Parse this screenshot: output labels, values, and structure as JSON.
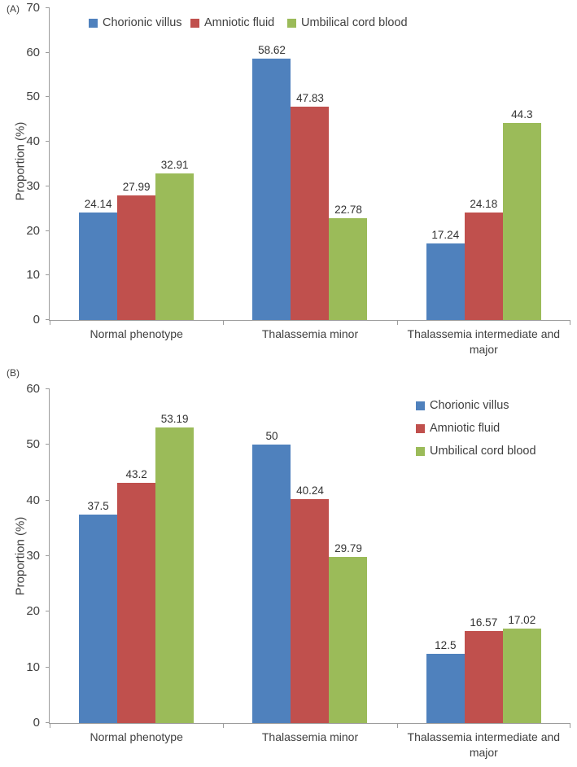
{
  "figure": {
    "panels": [
      {
        "letter": "(A)"
      },
      {
        "letter": "(B)"
      }
    ]
  },
  "chart_data": [
    {
      "type": "bar",
      "panel": "A",
      "title": "",
      "xlabel": "",
      "ylabel": "Proportion (%)",
      "ylim": [
        0,
        70
      ],
      "ytick_step": 10,
      "grid": false,
      "legend_position": "top-horizontal-inside",
      "categories": [
        "Normal phenotype",
        "Thalassemia minor",
        "Thalassemia intermediate and major"
      ],
      "series": [
        {
          "name": "Chorionic villus",
          "color": "#4f81bd",
          "values": [
            24.14,
            58.62,
            17.24
          ]
        },
        {
          "name": "Amniotic fluid",
          "color": "#c0504d",
          "values": [
            27.99,
            47.83,
            24.18
          ]
        },
        {
          "name": "Umbilical cord blood",
          "color": "#9bbb59",
          "values": [
            32.91,
            22.78,
            44.3
          ]
        }
      ]
    },
    {
      "type": "bar",
      "panel": "B",
      "title": "",
      "xlabel": "",
      "ylabel": "Proportion (%)",
      "ylim": [
        0,
        60
      ],
      "ytick_step": 10,
      "grid": false,
      "legend_position": "top-right-vertical-inside",
      "categories": [
        "Normal phenotype",
        "Thalassemia minor",
        "Thalassemia intermediate and major"
      ],
      "series": [
        {
          "name": "Chorionic villus",
          "color": "#4f81bd",
          "values": [
            37.5,
            50,
            12.5
          ]
        },
        {
          "name": "Amniotic fluid",
          "color": "#c0504d",
          "values": [
            43.2,
            40.24,
            16.57
          ]
        },
        {
          "name": "Umbilical cord blood",
          "color": "#9bbb59",
          "values": [
            53.19,
            29.79,
            17.02
          ]
        }
      ]
    }
  ]
}
